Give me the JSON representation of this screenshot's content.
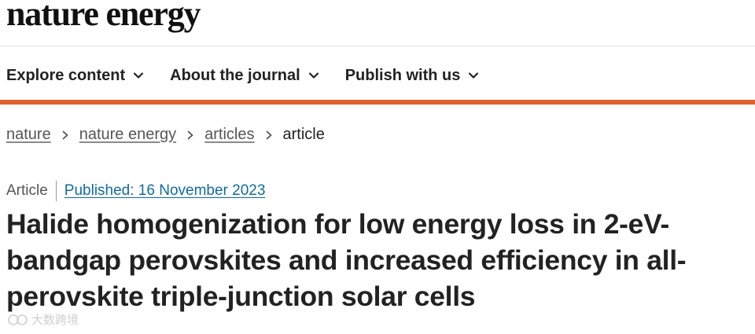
{
  "header": {
    "logo_text": "nature energy"
  },
  "nav": {
    "items": [
      {
        "label": "Explore content",
        "icon": "chevron-down-icon"
      },
      {
        "label": "About the journal",
        "icon": "chevron-down-icon"
      },
      {
        "label": "Publish with us",
        "icon": "chevron-down-icon"
      }
    ]
  },
  "colors": {
    "accent_bar": "#e0622f",
    "link_blue": "#106ba3"
  },
  "breadcrumb": {
    "items": [
      "nature",
      "nature energy",
      "articles"
    ],
    "current": "article",
    "separator_icon": "chevron-right-icon"
  },
  "article": {
    "type": "Article",
    "published": "Published: 16 November 2023",
    "title": "Halide homogenization for low energy loss in 2-eV-bandgap perovskites and increased efficiency in all-perovskite triple-junction solar cells"
  },
  "watermark": {
    "text": "大数跨境"
  }
}
